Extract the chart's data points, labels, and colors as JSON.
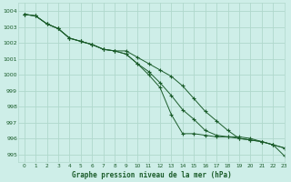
{
  "title": "Graphe pression niveau de la mer (hPa)",
  "background_color": "#ceeee8",
  "grid_color": "#b0d8cc",
  "line_color": "#1a5c2a",
  "marker_color": "#1a5c2a",
  "xlim": [
    -0.5,
    23
  ],
  "ylim": [
    994.5,
    1004.5
  ],
  "yticks": [
    995,
    996,
    997,
    998,
    999,
    1000,
    1001,
    1002,
    1003,
    1004
  ],
  "xticks": [
    0,
    1,
    2,
    3,
    4,
    5,
    6,
    7,
    8,
    9,
    10,
    11,
    12,
    13,
    14,
    15,
    16,
    17,
    18,
    19,
    20,
    21,
    22,
    23
  ],
  "series1": [
    1003.8,
    1003.7,
    1003.2,
    1002.9,
    1002.3,
    1002.1,
    1001.9,
    1001.6,
    1001.5,
    1001.5,
    1001.1,
    1000.7,
    1000.3,
    999.9,
    999.3,
    998.5,
    997.7,
    997.1,
    996.5,
    996.0,
    995.9,
    995.8,
    995.6,
    995.4
  ],
  "series2": [
    1003.8,
    1003.7,
    1003.2,
    1002.9,
    1002.3,
    1002.1,
    1001.9,
    1001.6,
    1001.5,
    1001.3,
    1000.7,
    1000.2,
    999.5,
    998.7,
    997.8,
    997.2,
    996.5,
    996.2,
    996.1,
    996.1,
    996.0,
    995.8,
    995.6,
    995.4
  ],
  "series3": [
    1003.8,
    1003.7,
    1003.2,
    1002.9,
    1002.3,
    1002.1,
    1001.9,
    1001.6,
    1001.5,
    1001.3,
    1000.7,
    1000.0,
    999.2,
    997.5,
    996.3,
    996.3,
    996.2,
    996.1,
    996.1,
    996.0,
    995.9,
    995.8,
    995.6,
    994.9
  ]
}
